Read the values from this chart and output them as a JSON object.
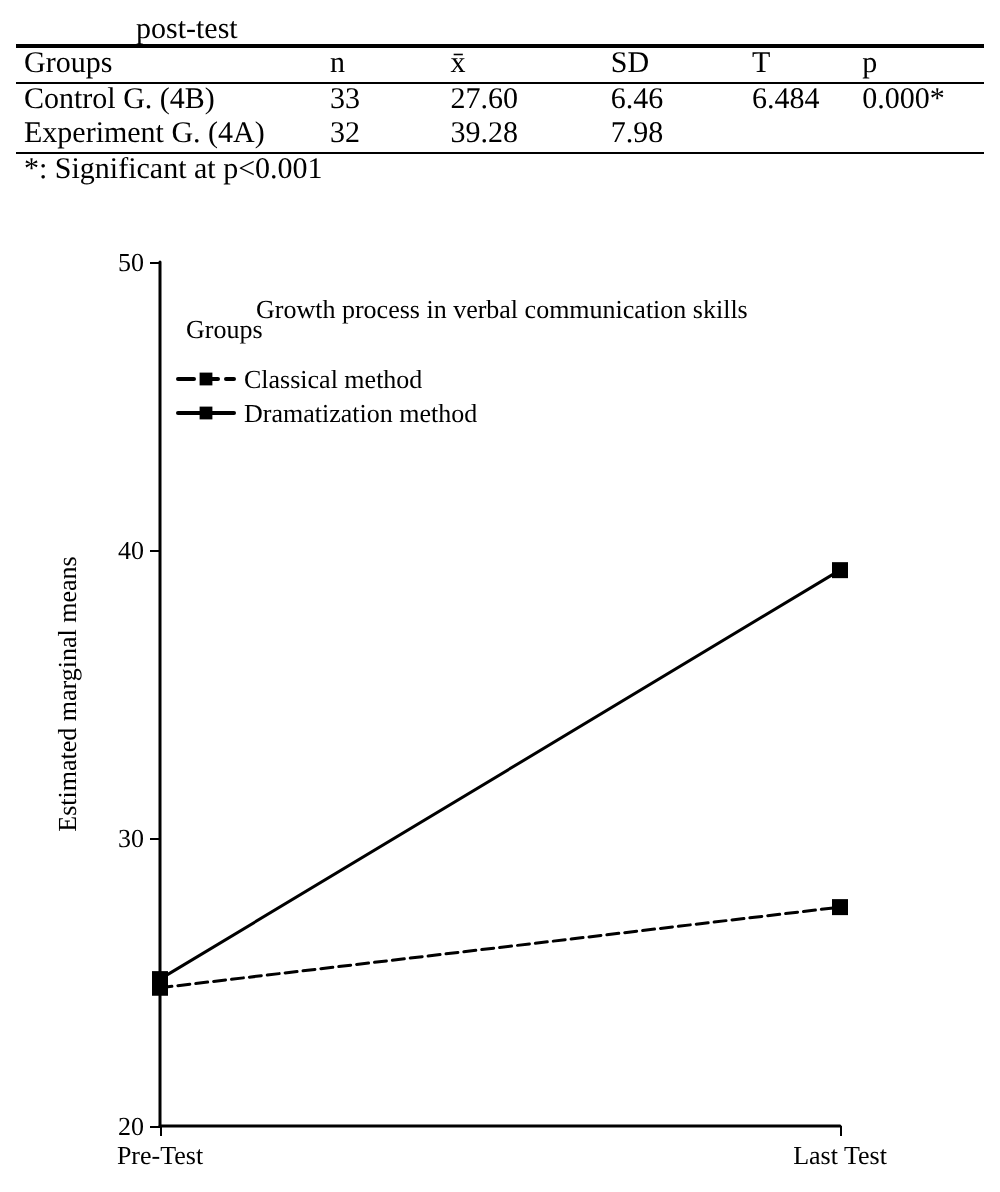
{
  "chart_data": [
    {
      "type": "other",
      "title": "post-test",
      "annotations": [
        "Groups",
        "n",
        "x̄",
        "SD",
        "T",
        "p",
        "Control G. (4B)",
        "33",
        "27.60",
        "6.46",
        "6.484",
        "0.000*",
        "Experiment G. (4A)",
        "32",
        "39.28",
        "7.98",
        "*: Significant at p<0.001"
      ]
    },
    {
      "type": "line",
      "title": "Growth process in verbal communication skills",
      "ylabel": "Estimated marginal means",
      "legend_title": "Groups",
      "legend": "top left",
      "categories": [
        "Pre-Test",
        "Last Test"
      ],
      "ylim": [
        20,
        50
      ],
      "yticks": [
        20,
        30,
        40,
        50
      ],
      "grid": false,
      "marker": "square",
      "series": [
        {
          "name": "Classical method",
          "color": "#000000",
          "line_style": "dashed",
          "values": [
            24.8,
            27.6
          ]
        },
        {
          "name": "Dramatization method",
          "color": "#000000",
          "line_style": "solid",
          "values": [
            25.1,
            39.3
          ]
        }
      ]
    }
  ]
}
